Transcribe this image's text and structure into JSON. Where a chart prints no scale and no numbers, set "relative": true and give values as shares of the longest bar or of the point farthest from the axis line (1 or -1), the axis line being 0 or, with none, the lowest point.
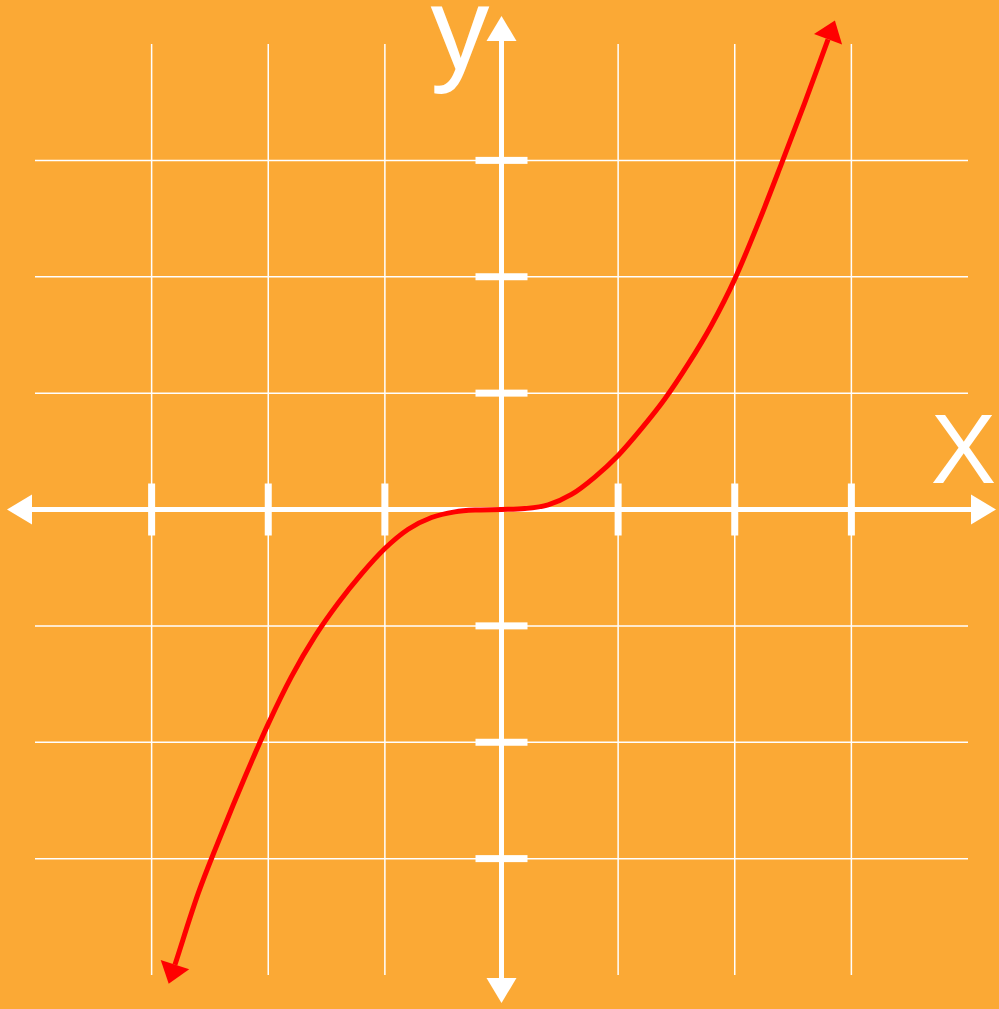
{
  "chart_data": {
    "type": "line",
    "xlabel": "X",
    "ylabel": "y",
    "relative": true,
    "grid": true,
    "legend": false,
    "marker": "none",
    "categories": [
      null,
      null,
      null,
      null,
      null,
      null,
      null,
      null,
      null,
      null,
      null,
      null,
      null,
      null,
      null,
      null,
      null,
      null,
      null,
      null,
      null,
      null,
      null,
      null,
      null,
      null,
      null,
      null,
      null,
      null,
      null,
      null,
      null,
      null,
      null,
      null,
      null,
      null,
      null,
      null,
      null
    ],
    "series": [
      {
        "color": "#ff0000",
        "values": [
          null,
          null,
          null,
          null,
          null,
          null,
          -0.968,
          -0.816,
          -0.689,
          -0.569,
          -0.456,
          -0.355,
          -0.27,
          -0.199,
          -0.137,
          -0.083,
          -0.042,
          -0.017,
          -0.005,
          -0.001,
          0,
          0.002,
          0.01,
          0.032,
          0.069,
          0.115,
          0.172,
          0.235,
          0.309,
          0.392,
          0.49,
          0.608,
          0.735,
          0.865,
          1,
          null,
          null,
          null,
          null,
          null,
          null
        ]
      }
    ]
  }
}
